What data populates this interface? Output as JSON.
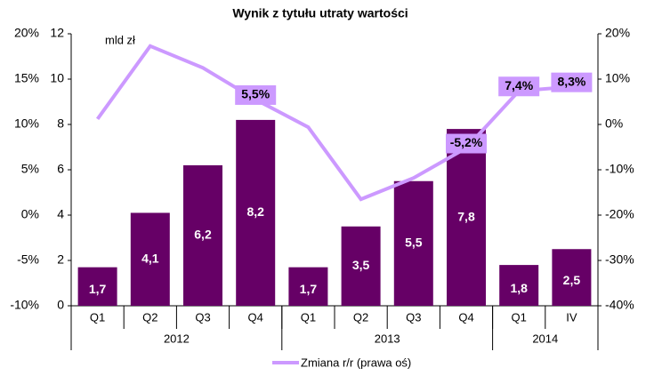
{
  "chart_data": {
    "type": "bar",
    "title": "Wynik z tytułu utraty wartości",
    "annotation": "mld zł",
    "categories": [
      "Q1",
      "Q2",
      "Q3",
      "Q4",
      "Q1",
      "Q2",
      "Q3",
      "Q4",
      "Q1",
      "IV"
    ],
    "groups": [
      {
        "label": "2012",
        "size": 4
      },
      {
        "label": "2013",
        "size": 4
      },
      {
        "label": "2014",
        "size": 2
      }
    ],
    "series": [
      {
        "name": null,
        "type": "bar",
        "color": "#660066",
        "values": [
          1.7,
          4.1,
          6.2,
          8.2,
          1.7,
          3.5,
          5.5,
          7.8,
          1.8,
          2.5
        ],
        "value_labels": [
          "1,7",
          "4,1",
          "6,2",
          "8,2",
          "1,7",
          "3,5",
          "5,5",
          "7,8",
          "1,8",
          "2,5"
        ]
      },
      {
        "name": "Zmiana r/r (prawa oś)",
        "type": "line",
        "axis": "y2",
        "color": "#cc99ff",
        "values": [
          1.2,
          17.3,
          12.5,
          5.5,
          -0.6,
          -16.5,
          -11.8,
          -5.2,
          7.4,
          8.3
        ],
        "value_labels": [
          null,
          null,
          null,
          "5,5%",
          null,
          null,
          null,
          "-5,2%",
          "7,4%",
          "8,3%"
        ]
      }
    ],
    "ylim": [
      0,
      12
    ],
    "yticks": [
      0,
      2,
      4,
      6,
      8,
      10,
      12
    ],
    "y3lim": [
      -10,
      20
    ],
    "y3ticks": [
      {
        "value": -10,
        "label": "-10%"
      },
      {
        "value": -5,
        "label": "-5%"
      },
      {
        "value": 0,
        "label": "0%"
      },
      {
        "value": 5,
        "label": "5%"
      },
      {
        "value": 10,
        "label": "10%"
      },
      {
        "value": 15,
        "label": "15%"
      },
      {
        "value": 20,
        "label": "20%"
      }
    ],
    "y2lim": [
      -40,
      20
    ],
    "y2ticks": [
      {
        "value": -40,
        "label": "-40%"
      },
      {
        "value": -30,
        "label": "-30%"
      },
      {
        "value": -20,
        "label": "-20%"
      },
      {
        "value": -10,
        "label": "-10%"
      },
      {
        "value": 0,
        "label": "0%"
      },
      {
        "value": 10,
        "label": "10%"
      },
      {
        "value": 20,
        "label": "20%"
      }
    ],
    "legend": "bottom"
  }
}
